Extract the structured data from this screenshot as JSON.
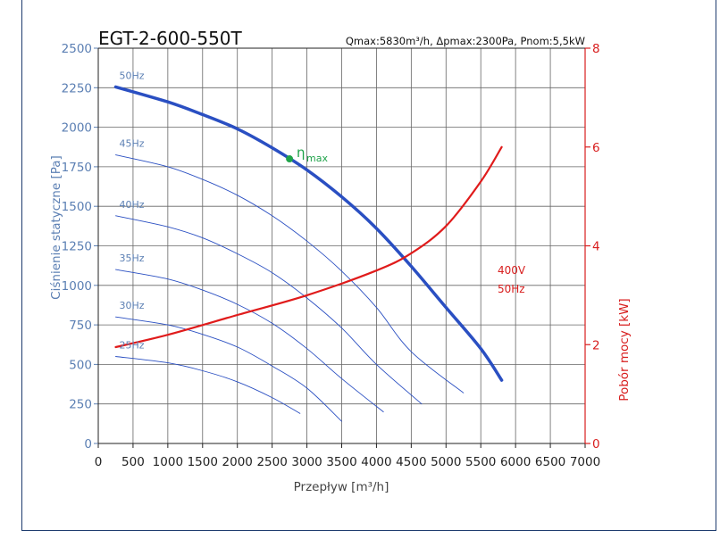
{
  "chart_data": {
    "type": "line",
    "title": "EGT-2-600-550T",
    "subtitle": "Qmax:5830m³/h, Δpmax:2300Pa, Pnom:5,5kW",
    "xlabel": "Przepływ [m³/h]",
    "ylabel_left": "Ciśnienie statyczne [Pa]",
    "ylabel_right": "Pobór mocy [kW]",
    "xlim": [
      0,
      7000
    ],
    "ylim_left": [
      0,
      2500
    ],
    "ylim_right": [
      0,
      8
    ],
    "x_ticks": [
      "0",
      "500",
      "1000",
      "1500",
      "2000",
      "2500",
      "3000",
      "3500",
      "4000",
      "4500",
      "5000",
      "5500",
      "6000",
      "6500",
      "7000"
    ],
    "y_ticks_left": [
      "0",
      "250",
      "500",
      "750",
      "1000",
      "1250",
      "1500",
      "1750",
      "2000",
      "2250",
      "2500"
    ],
    "y_ticks_right": [
      "0",
      "2",
      "4",
      "6",
      "8"
    ],
    "grid": true,
    "pressure_series": [
      {
        "name": "50Hz",
        "color": "#2a4fc2",
        "width": 3.5,
        "points": [
          [
            250,
            2255
          ],
          [
            1000,
            2160
          ],
          [
            1500,
            2080
          ],
          [
            2000,
            1990
          ],
          [
            2500,
            1870
          ],
          [
            3000,
            1730
          ],
          [
            3500,
            1560
          ],
          [
            4000,
            1360
          ],
          [
            4500,
            1120
          ],
          [
            5000,
            860
          ],
          [
            5500,
            600
          ],
          [
            5800,
            400
          ]
        ]
      },
      {
        "name": "45Hz",
        "color": "#2a4fc2",
        "width": 0.9,
        "points": [
          [
            250,
            1825
          ],
          [
            1000,
            1750
          ],
          [
            1500,
            1670
          ],
          [
            2000,
            1570
          ],
          [
            2500,
            1440
          ],
          [
            3000,
            1280
          ],
          [
            3500,
            1090
          ],
          [
            4000,
            860
          ],
          [
            4500,
            580
          ],
          [
            5250,
            320
          ]
        ]
      },
      {
        "name": "40Hz",
        "color": "#2a4fc2",
        "width": 0.9,
        "points": [
          [
            250,
            1440
          ],
          [
            1000,
            1370
          ],
          [
            1500,
            1300
          ],
          [
            2000,
            1200
          ],
          [
            2500,
            1080
          ],
          [
            3000,
            920
          ],
          [
            3500,
            730
          ],
          [
            4000,
            500
          ],
          [
            4650,
            250
          ]
        ]
      },
      {
        "name": "35Hz",
        "color": "#2a4fc2",
        "width": 0.9,
        "points": [
          [
            250,
            1100
          ],
          [
            1000,
            1040
          ],
          [
            1500,
            970
          ],
          [
            2000,
            880
          ],
          [
            2500,
            760
          ],
          [
            3000,
            600
          ],
          [
            3500,
            410
          ],
          [
            4100,
            200
          ]
        ]
      },
      {
        "name": "30Hz",
        "color": "#2a4fc2",
        "width": 0.9,
        "points": [
          [
            250,
            800
          ],
          [
            1000,
            750
          ],
          [
            1500,
            690
          ],
          [
            2000,
            610
          ],
          [
            2500,
            490
          ],
          [
            3000,
            350
          ],
          [
            3500,
            140
          ]
        ]
      },
      {
        "name": "25Hz",
        "color": "#2a4fc2",
        "width": 0.9,
        "points": [
          [
            250,
            550
          ],
          [
            1000,
            510
          ],
          [
            1500,
            460
          ],
          [
            2000,
            390
          ],
          [
            2500,
            290
          ],
          [
            2900,
            190
          ]
        ]
      }
    ],
    "power_series": {
      "name": "400V 50Hz",
      "label_line1": "400V",
      "label_line2": "50Hz",
      "color": "#e01b1b",
      "points": [
        [
          250,
          1.95
        ],
        [
          1000,
          2.2
        ],
        [
          2000,
          2.6
        ],
        [
          3000,
          3.0
        ],
        [
          4000,
          3.5
        ],
        [
          4500,
          3.85
        ],
        [
          5000,
          4.4
        ],
        [
          5500,
          5.3
        ],
        [
          5800,
          6.0
        ]
      ]
    },
    "eta_max": {
      "x": 2750,
      "y": 1800,
      "label": "η",
      "sub": "max",
      "color": "#1fa34a"
    }
  }
}
